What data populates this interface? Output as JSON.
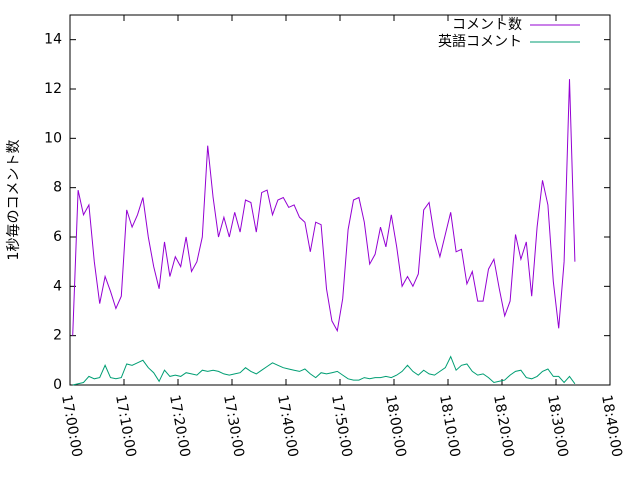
{
  "chart_data": {
    "type": "line",
    "y_label": "1秒毎のコメント数",
    "x": [
      "17:00:30",
      "17:01:30",
      "17:02:30",
      "17:03:30",
      "17:04:30",
      "17:05:30",
      "17:06:30",
      "17:07:30",
      "17:08:30",
      "17:09:30",
      "17:10:30",
      "17:11:30",
      "17:12:30",
      "17:13:30",
      "17:14:30",
      "17:15:30",
      "17:16:30",
      "17:17:30",
      "17:18:30",
      "17:19:30",
      "17:20:30",
      "17:21:30",
      "17:22:30",
      "17:23:30",
      "17:24:30",
      "17:25:30",
      "17:26:30",
      "17:27:30",
      "17:28:30",
      "17:29:30",
      "17:30:30",
      "17:31:30",
      "17:32:30",
      "17:33:30",
      "17:34:30",
      "17:35:30",
      "17:36:30",
      "17:37:30",
      "17:38:30",
      "17:39:30",
      "17:40:30",
      "17:41:30",
      "17:42:30",
      "17:43:30",
      "17:44:30",
      "17:45:30",
      "17:46:30",
      "17:47:30",
      "17:48:30",
      "17:49:30",
      "17:50:30",
      "17:51:30",
      "17:52:30",
      "17:53:30",
      "17:54:30",
      "17:55:30",
      "17:56:30",
      "17:57:30",
      "17:58:30",
      "17:59:30",
      "18:00:30",
      "18:01:30",
      "18:02:30",
      "18:03:30",
      "18:04:30",
      "18:05:30",
      "18:06:30",
      "18:07:30",
      "18:08:30",
      "18:09:30",
      "18:10:30",
      "18:11:30",
      "18:12:30",
      "18:13:30",
      "18:14:30",
      "18:15:30",
      "18:16:30",
      "18:17:30",
      "18:18:30",
      "18:19:30",
      "18:20:30",
      "18:21:30",
      "18:22:30",
      "18:23:30",
      "18:24:30",
      "18:25:30",
      "18:26:30",
      "18:27:30",
      "18:28:30",
      "18:29:30",
      "18:30:30",
      "18:31:30",
      "18:32:30",
      "18:33:30"
    ],
    "series": [
      {
        "name": "コメント数",
        "color": "#9400d3",
        "values": [
          2.0,
          7.9,
          6.9,
          7.3,
          5.0,
          3.3,
          4.4,
          3.8,
          3.1,
          3.6,
          7.1,
          6.4,
          6.9,
          7.6,
          6.0,
          4.8,
          3.9,
          5.8,
          4.4,
          5.2,
          4.8,
          6.0,
          4.6,
          5.0,
          6.0,
          9.7,
          7.6,
          6.0,
          6.8,
          6.0,
          7.0,
          6.2,
          7.5,
          7.4,
          6.2,
          7.8,
          7.9,
          6.9,
          7.5,
          7.6,
          7.2,
          7.3,
          6.8,
          6.6,
          5.4,
          6.6,
          6.5,
          3.9,
          2.6,
          2.2,
          3.5,
          6.3,
          7.5,
          7.6,
          6.6,
          4.9,
          5.3,
          6.4,
          5.6,
          6.9,
          5.6,
          4.0,
          4.4,
          4.0,
          4.5,
          7.1,
          7.4,
          6.0,
          5.2,
          6.1,
          7.0,
          5.4,
          5.5,
          4.1,
          4.6,
          3.4,
          3.4,
          4.7,
          5.1,
          3.9,
          2.8,
          3.4,
          6.1,
          5.1,
          5.8,
          3.6,
          6.4,
          8.3,
          7.3,
          4.2,
          2.3,
          5.0,
          12.4,
          5.0
        ]
      },
      {
        "name": "英語コメント",
        "color": "#009e73",
        "values": [
          0,
          0.05,
          0.1,
          0.35,
          0.25,
          0.3,
          0.8,
          0.3,
          0.25,
          0.3,
          0.85,
          0.8,
          0.9,
          1.0,
          0.7,
          0.5,
          0.15,
          0.6,
          0.35,
          0.4,
          0.35,
          0.5,
          0.45,
          0.4,
          0.6,
          0.55,
          0.6,
          0.55,
          0.45,
          0.4,
          0.45,
          0.5,
          0.7,
          0.55,
          0.45,
          0.6,
          0.75,
          0.9,
          0.8,
          0.7,
          0.65,
          0.6,
          0.55,
          0.65,
          0.45,
          0.3,
          0.5,
          0.45,
          0.5,
          0.55,
          0.4,
          0.25,
          0.2,
          0.2,
          0.3,
          0.25,
          0.3,
          0.3,
          0.35,
          0.3,
          0.4,
          0.55,
          0.8,
          0.55,
          0.4,
          0.6,
          0.45,
          0.4,
          0.55,
          0.7,
          1.15,
          0.6,
          0.8,
          0.85,
          0.55,
          0.4,
          0.45,
          0.3,
          0.1,
          0.15,
          0.2,
          0.4,
          0.55,
          0.6,
          0.3,
          0.25,
          0.35,
          0.55,
          0.65,
          0.35,
          0.35,
          0.1,
          0.35,
          0.05
        ]
      }
    ],
    "xlim": [
      "17:00:00",
      "18:40:00"
    ],
    "xticks": [
      "17:00:00",
      "17:10:00",
      "17:20:00",
      "17:30:00",
      "17:40:00",
      "17:50:00",
      "18:00:00",
      "18:10:00",
      "18:20:00",
      "18:30:00",
      "18:40:00"
    ],
    "ylim": [
      0,
      15
    ],
    "yticks": [
      0,
      2,
      4,
      6,
      8,
      10,
      12,
      14
    ],
    "legend": "top-right"
  }
}
